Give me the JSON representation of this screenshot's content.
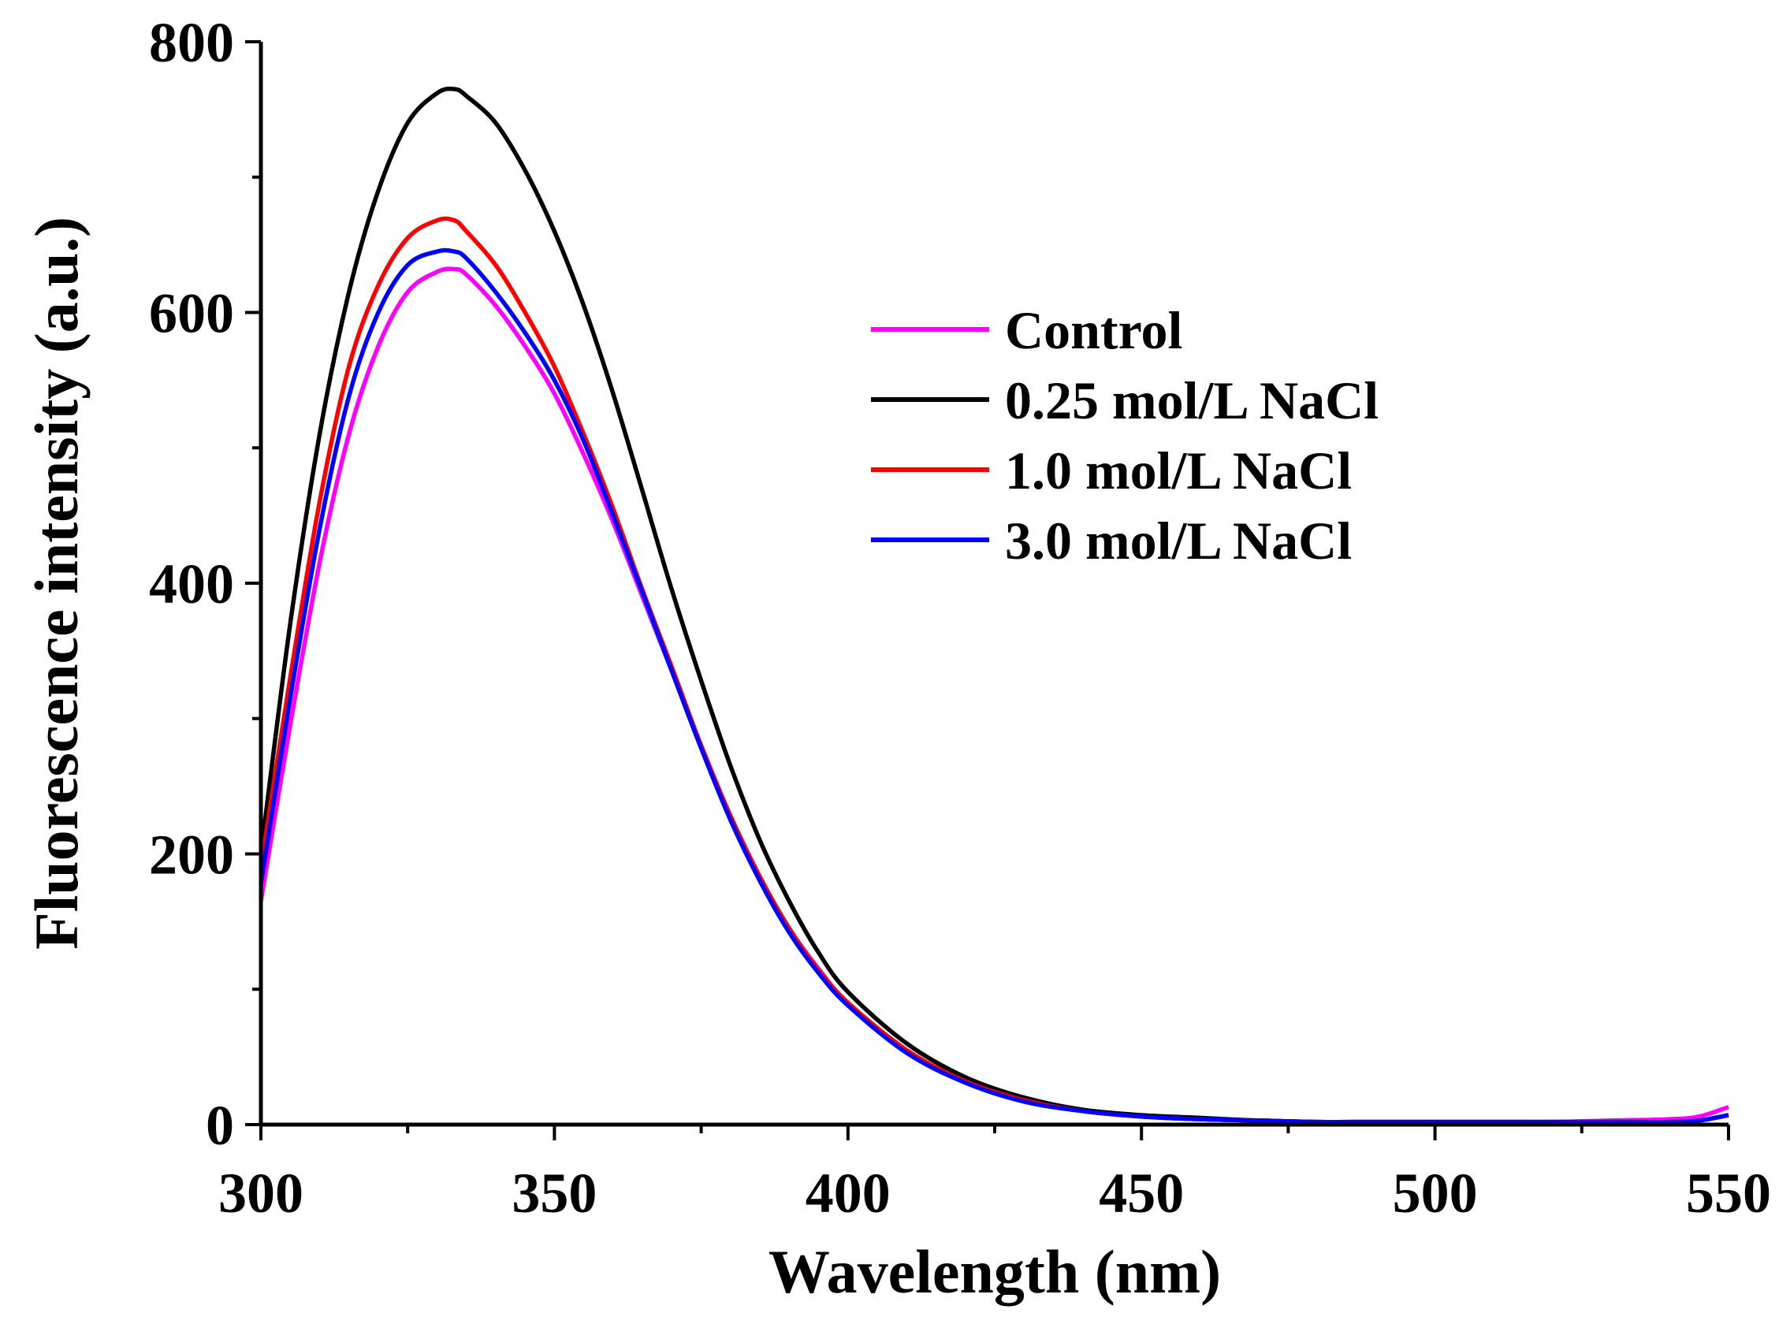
{
  "chart_data": {
    "type": "line",
    "title": "",
    "xlabel": "Wavelength (nm)",
    "ylabel": "Fluorescence intensity (a.u.)",
    "xlim": [
      300,
      550
    ],
    "ylim": [
      0,
      800
    ],
    "x_ticks": [
      300,
      350,
      400,
      450,
      500,
      550
    ],
    "y_ticks": [
      0,
      200,
      400,
      600,
      800
    ],
    "x_minor_step": 25,
    "y_minor_step": 100,
    "grid": false,
    "legend_position": "upper-right",
    "x": [
      300,
      305,
      310,
      315,
      320,
      325,
      330,
      333,
      335,
      340,
      345,
      350,
      355,
      360,
      365,
      370,
      375,
      380,
      385,
      390,
      395,
      400,
      410,
      420,
      430,
      440,
      450,
      460,
      470,
      480,
      490,
      500,
      510,
      520,
      530,
      540,
      545,
      550
    ],
    "series": [
      {
        "name": "Control",
        "color": "#ff00ff",
        "values": [
          165,
          295,
          415,
          510,
          575,
          615,
          630,
          632,
          628,
          605,
          575,
          540,
          495,
          445,
          390,
          335,
          280,
          228,
          183,
          145,
          115,
          90,
          55,
          32,
          18,
          10,
          6,
          4,
          3,
          2,
          2,
          2,
          2,
          2,
          3,
          4,
          6,
          13
        ]
      },
      {
        "name": "0.25 mol/L NaCl",
        "color": "#000000",
        "values": [
          200,
          370,
          510,
          615,
          690,
          740,
          762,
          765,
          760,
          740,
          705,
          660,
          605,
          540,
          468,
          395,
          328,
          265,
          210,
          165,
          127,
          98,
          60,
          35,
          20,
          11,
          7,
          5,
          3,
          2,
          2,
          2,
          2,
          2,
          2,
          2,
          3,
          7
        ]
      },
      {
        "name": "1.0 mol/L NaCl",
        "color": "#ff0000",
        "values": [
          190,
          330,
          460,
          560,
          620,
          655,
          668,
          668,
          660,
          635,
          600,
          560,
          510,
          455,
          395,
          338,
          280,
          228,
          183,
          145,
          114,
          90,
          55,
          32,
          18,
          10,
          6,
          4,
          3,
          2,
          2,
          2,
          2,
          2,
          2,
          2,
          3,
          7
        ]
      },
      {
        "name": "3.0 mol/L NaCl",
        "color": "#0000ff",
        "values": [
          178,
          315,
          440,
          538,
          600,
          635,
          645,
          645,
          640,
          615,
          585,
          550,
          505,
          450,
          393,
          335,
          278,
          225,
          180,
          142,
          112,
          88,
          53,
          31,
          17,
          10,
          6,
          4,
          3,
          2,
          2,
          2,
          2,
          2,
          2,
          2,
          3,
          7
        ]
      }
    ]
  }
}
